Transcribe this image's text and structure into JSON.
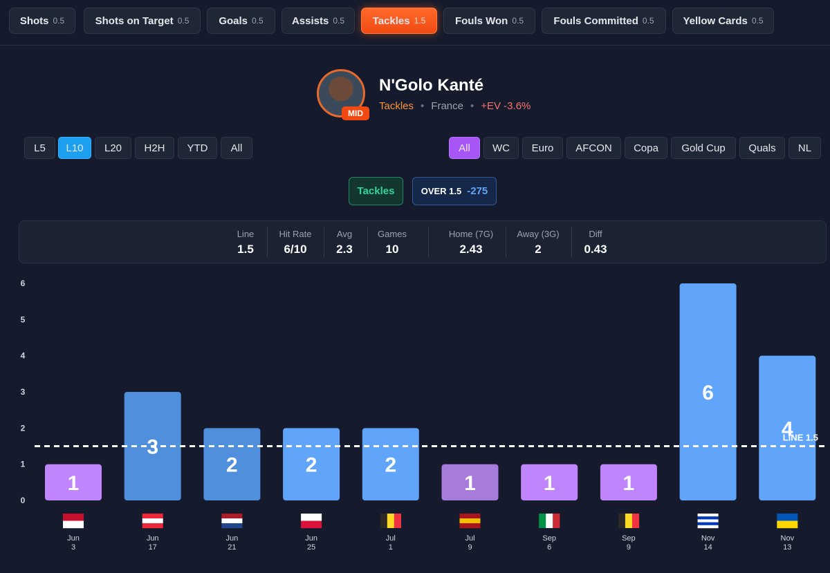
{
  "tabs": [
    {
      "label": "Shots",
      "line": "0.5",
      "active": false
    },
    {
      "label": "Shots on Target",
      "line": "0.5",
      "active": false
    },
    {
      "label": "Goals",
      "line": "0.5",
      "active": false
    },
    {
      "label": "Assists",
      "line": "0.5",
      "active": false
    },
    {
      "label": "Tackles",
      "line": "1.5",
      "active": true
    },
    {
      "label": "Fouls Won",
      "line": "0.5",
      "active": false
    },
    {
      "label": "Fouls Committed",
      "line": "0.5",
      "active": false
    },
    {
      "label": "Yellow Cards",
      "line": "0.5",
      "active": false
    }
  ],
  "player": {
    "name": "N'Golo Kanté",
    "badge": "MID",
    "stat": "Tackles",
    "team": "France",
    "ev": "+EV -3.6%"
  },
  "range_filters": [
    {
      "label": "L5",
      "active": false
    },
    {
      "label": "L10",
      "active": true
    },
    {
      "label": "L20",
      "active": false
    },
    {
      "label": "H2H",
      "active": false
    },
    {
      "label": "YTD",
      "active": false
    },
    {
      "label": "All",
      "active": false
    }
  ],
  "comp_filters": [
    {
      "label": "All",
      "active": true
    },
    {
      "label": "WC",
      "active": false
    },
    {
      "label": "Euro",
      "active": false
    },
    {
      "label": "AFCON",
      "active": false
    },
    {
      "label": "Copa",
      "active": false
    },
    {
      "label": "Gold Cup",
      "active": false
    },
    {
      "label": "Quals",
      "active": false
    },
    {
      "label": "NL",
      "active": false
    }
  ],
  "chips": {
    "stat": "Tackles",
    "side": "OVER 1.5",
    "odds": "-275"
  },
  "stats": [
    {
      "label": "Line",
      "value": "1.5"
    },
    {
      "label": "Hit Rate",
      "value": "6/10"
    },
    {
      "label": "Avg",
      "value": "2.3"
    },
    {
      "label": "Games",
      "value": "10"
    },
    {
      "label": "Home (7G)",
      "value": "2.43"
    },
    {
      "label": "Away (3G)",
      "value": "2"
    },
    {
      "label": "Diff",
      "value": "0.43"
    }
  ],
  "chart_data": {
    "type": "bar",
    "categories": [
      "Jun\n3",
      "Jun\n17",
      "Jun\n21",
      "Jun\n25",
      "Jul\n1",
      "Jul\n9",
      "Sep\n6",
      "Sep\n9",
      "Nov\n14",
      "Nov\n13"
    ],
    "values": [
      1,
      3,
      2,
      2,
      2,
      1,
      1,
      1,
      6,
      4
    ],
    "colors": [
      "#c084fc",
      "#4f8fdc",
      "#4f8fdc",
      "#60a5fa",
      "#60a5fa",
      "#a77bdc",
      "#c084fc",
      "#c084fc",
      "#60a5fa",
      "#60a5fa"
    ],
    "ylim": [
      0,
      6
    ],
    "yticks": [
      0,
      1,
      2,
      3,
      4,
      5,
      6
    ],
    "line": 1.5,
    "line_label": "LINE 1.5"
  }
}
